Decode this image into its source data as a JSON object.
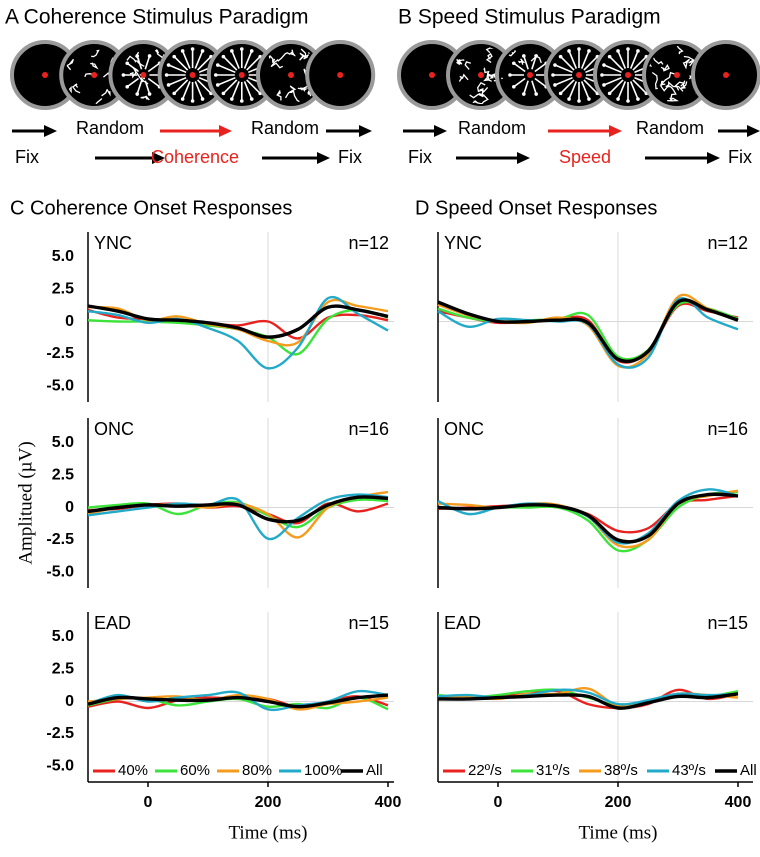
{
  "paradigms": [
    {
      "title": "A Coherence Stimulus Paradigm",
      "row1": [
        "Random",
        "Random"
      ],
      "row2": [
        "Fix",
        "Coherence",
        "Fix"
      ]
    },
    {
      "title": "B Speed Stimulus Paradigm",
      "row1": [
        "Random",
        "Random"
      ],
      "row2": [
        "Fix",
        "Speed",
        "Fix"
      ]
    }
  ],
  "chart_data": [
    {
      "type": "line",
      "title": "C Coherence Onset Responses",
      "annotations": [
        "YNC",
        "n=12"
      ],
      "x": [
        -100,
        -50,
        0,
        50,
        100,
        150,
        200,
        250,
        300,
        350,
        400
      ],
      "xlim": [
        -100,
        410
      ],
      "ylim": [
        -6.2,
        6.9
      ],
      "yticks": [
        {
          "value": 5,
          "label": "5.0"
        },
        2.5,
        0,
        -2.5,
        {
          "value": -5,
          "label": "-5.0"
        }
      ],
      "reference_lines": {
        "x": 200,
        "y": 0
      },
      "series": [
        {
          "color": "#e8231f",
          "values": [
            0.9,
            0.3,
            0.2,
            0.1,
            -0.1,
            -0.3,
            0.0,
            -1.3,
            0.3,
            0.5,
            0.1
          ]
        },
        {
          "color": "#3de33a",
          "values": [
            0.1,
            0.0,
            0.0,
            -0.1,
            -0.3,
            -0.6,
            -1.2,
            -2.5,
            0.2,
            0.9,
            0.3
          ]
        },
        {
          "color": "#f59b1e",
          "values": [
            1.1,
            1.0,
            0.1,
            0.4,
            -0.2,
            -0.6,
            -1.5,
            -1.6,
            1.5,
            1.2,
            0.8
          ]
        },
        {
          "color": "#22aac8",
          "values": [
            0.8,
            0.5,
            -0.1,
            0.2,
            -0.5,
            -1.5,
            -3.6,
            -2.0,
            1.8,
            0.6,
            -0.7
          ]
        },
        {
          "color": "#000000",
          "values": [
            1.2,
            0.8,
            0.2,
            0.1,
            -0.1,
            -0.5,
            -1.2,
            -0.6,
            1.1,
            0.9,
            0.4
          ]
        }
      ]
    },
    {
      "type": "line",
      "title": "D Speed Onset Responses",
      "annotations": [
        "YNC",
        "n=12"
      ],
      "x": [
        -100,
        -50,
        0,
        50,
        100,
        150,
        200,
        250,
        300,
        350,
        400
      ],
      "xlim": [
        -100,
        425
      ],
      "ylim": [
        -6.2,
        6.9
      ],
      "reference_lines": {
        "x": 200,
        "y": 0
      },
      "series": [
        {
          "color": "#e8231f",
          "values": [
            0.8,
            0.3,
            -0.1,
            0.0,
            0.2,
            0.1,
            -3.0,
            -2.3,
            1.2,
            0.8,
            0.3
          ]
        },
        {
          "color": "#3de33a",
          "values": [
            1.0,
            0.3,
            0.0,
            0.1,
            0.2,
            0.5,
            -2.7,
            -2.2,
            1.3,
            1.0,
            0.2
          ]
        },
        {
          "color": "#f59b1e",
          "values": [
            1.3,
            0.5,
            0.0,
            -0.1,
            0.3,
            -0.3,
            -3.4,
            -2.5,
            1.9,
            1.0,
            0.1
          ]
        },
        {
          "color": "#22aac8",
          "values": [
            0.8,
            -0.4,
            0.2,
            0.1,
            0.0,
            -0.2,
            -3.3,
            -2.8,
            1.7,
            0.3,
            -0.6
          ]
        },
        {
          "color": "#000000",
          "values": [
            1.5,
            0.6,
            0.0,
            0.0,
            0.1,
            -0.1,
            -2.9,
            -2.3,
            1.5,
            0.9,
            0.1
          ]
        }
      ]
    },
    {
      "type": "line",
      "annotations": [
        "ONC",
        "n=16"
      ],
      "ylabel": "Amplitued (µV)",
      "x": [
        -100,
        -50,
        0,
        50,
        100,
        150,
        200,
        250,
        300,
        350,
        400
      ],
      "xlim": [
        -100,
        410
      ],
      "ylim": [
        -6.2,
        6.9
      ],
      "yticks": [
        {
          "value": 5,
          "label": "5.0"
        },
        2.5,
        0,
        -2.5,
        {
          "value": -5,
          "label": "-5.0"
        }
      ],
      "reference_lines": {
        "x": 200,
        "y": 0
      },
      "series": [
        {
          "color": "#e8231f",
          "values": [
            -0.2,
            -0.1,
            0.2,
            0.3,
            0.0,
            0.1,
            -0.5,
            -1.2,
            0.3,
            -0.3,
            0.3
          ]
        },
        {
          "color": "#3de33a",
          "values": [
            0.0,
            0.2,
            0.3,
            -0.5,
            0.2,
            0.4,
            -0.6,
            -1.5,
            0.0,
            0.6,
            0.5
          ]
        },
        {
          "color": "#f59b1e",
          "values": [
            -0.5,
            0.0,
            0.2,
            0.2,
            0.0,
            0.3,
            -0.5,
            -2.3,
            0.0,
            0.8,
            1.2
          ]
        },
        {
          "color": "#22aac8",
          "values": [
            -0.6,
            -0.3,
            0.0,
            0.3,
            0.2,
            0.6,
            -2.4,
            -0.8,
            0.6,
            1.0,
            0.8
          ]
        },
        {
          "color": "#000000",
          "values": [
            -0.3,
            0.0,
            0.2,
            0.1,
            0.2,
            0.2,
            -0.9,
            -1.0,
            0.2,
            0.8,
            0.7
          ]
        }
      ]
    },
    {
      "type": "line",
      "annotations": [
        "ONC",
        "n=16"
      ],
      "x": [
        -100,
        -50,
        0,
        50,
        100,
        150,
        200,
        250,
        300,
        350,
        400
      ],
      "xlim": [
        -100,
        425
      ],
      "ylim": [
        -6.2,
        6.9
      ],
      "reference_lines": {
        "x": 200,
        "y": 0
      },
      "series": [
        {
          "color": "#e8231f",
          "values": [
            -0.1,
            0.0,
            0.1,
            0.2,
            0.0,
            -0.5,
            -1.8,
            -1.6,
            0.3,
            0.6,
            0.9
          ]
        },
        {
          "color": "#3de33a",
          "values": [
            0.0,
            -0.1,
            0.0,
            0.0,
            0.0,
            -1.0,
            -3.3,
            -2.5,
            0.0,
            1.0,
            1.2
          ]
        },
        {
          "color": "#f59b1e",
          "values": [
            0.3,
            0.2,
            0.0,
            0.3,
            0.2,
            -0.7,
            -2.9,
            -2.5,
            0.3,
            0.9,
            1.3
          ]
        },
        {
          "color": "#22aac8",
          "values": [
            0.5,
            -0.5,
            0.0,
            0.3,
            0.1,
            -0.7,
            -2.7,
            -2.0,
            0.5,
            1.4,
            0.9
          ]
        },
        {
          "color": "#000000",
          "values": [
            0.0,
            -0.1,
            0.0,
            0.2,
            0.1,
            -0.6,
            -2.5,
            -2.2,
            0.3,
            1.0,
            0.9
          ]
        }
      ]
    },
    {
      "type": "line",
      "annotations": [
        "EAD",
        "n=15"
      ],
      "xlabel": "Time (ms)",
      "x": [
        -100,
        -50,
        0,
        50,
        100,
        150,
        200,
        250,
        300,
        350,
        400
      ],
      "xlim": [
        -100,
        410
      ],
      "ylim": [
        -6.2,
        6.9
      ],
      "xticks": [
        0,
        200,
        400
      ],
      "yticks": [
        {
          "value": 5,
          "label": "5.0"
        },
        2.5,
        0,
        -2.5,
        {
          "value": -5,
          "label": "-5.0"
        }
      ],
      "reference_lines": {
        "x": 200,
        "y": 0
      },
      "series": [
        {
          "name": "40%",
          "color": "#e8231f",
          "values": [
            -0.4,
            0.0,
            -0.5,
            0.1,
            0.3,
            0.2,
            0.2,
            -0.4,
            0.0,
            0.4,
            -0.3
          ]
        },
        {
          "name": "60%",
          "color": "#3de33a",
          "values": [
            -0.3,
            0.2,
            0.2,
            -0.3,
            0.0,
            0.2,
            -0.4,
            -0.2,
            -0.5,
            0.3,
            -0.6
          ]
        },
        {
          "name": "80%",
          "color": "#f59b1e",
          "values": [
            0.0,
            0.2,
            0.3,
            0.4,
            0.1,
            0.5,
            0.2,
            -0.6,
            -0.2,
            0.0,
            0.3
          ]
        },
        {
          "name": "100%",
          "color": "#22aac8",
          "values": [
            -0.2,
            0.5,
            0.0,
            0.3,
            0.5,
            0.7,
            -0.6,
            -0.3,
            0.0,
            0.8,
            0.5
          ]
        },
        {
          "name": "All",
          "color": "#000000",
          "values": [
            -0.2,
            0.3,
            0.2,
            0.1,
            0.1,
            0.3,
            0.0,
            -0.4,
            -0.1,
            0.3,
            0.5
          ]
        }
      ]
    },
    {
      "type": "line",
      "annotations": [
        "EAD",
        "n=15"
      ],
      "xlabel": "Time (ms)",
      "x": [
        -100,
        -50,
        0,
        50,
        100,
        150,
        200,
        250,
        300,
        350,
        400
      ],
      "xlim": [
        -100,
        425
      ],
      "ylim": [
        -6.2,
        6.9
      ],
      "xticks": [
        0,
        200,
        400
      ],
      "reference_lines": {
        "x": 200,
        "y": 0
      },
      "series": [
        {
          "name": "22º/s",
          "color": "#e8231f",
          "values": [
            0.3,
            0.2,
            0.4,
            0.6,
            0.8,
            -0.2,
            -0.5,
            -0.2,
            0.9,
            0.2,
            0.6
          ]
        },
        {
          "name": "31º/s",
          "color": "#3de33a",
          "values": [
            0.5,
            0.3,
            0.5,
            0.8,
            0.9,
            0.3,
            -0.3,
            0.0,
            0.5,
            0.4,
            0.8
          ]
        },
        {
          "name": "38º/s",
          "color": "#f59b1e",
          "values": [
            0.3,
            0.4,
            0.2,
            0.6,
            0.6,
            1.0,
            -0.3,
            0.0,
            0.6,
            0.5,
            0.3
          ]
        },
        {
          "name": "43º/s",
          "color": "#22aac8",
          "values": [
            0.4,
            0.5,
            0.3,
            0.5,
            0.9,
            0.7,
            -0.2,
            0.1,
            0.6,
            0.5,
            0.6
          ]
        },
        {
          "name": "All",
          "color": "#000000",
          "values": [
            0.2,
            0.2,
            0.3,
            0.4,
            0.5,
            0.4,
            -0.5,
            -0.1,
            0.4,
            0.3,
            0.6
          ]
        }
      ]
    }
  ]
}
